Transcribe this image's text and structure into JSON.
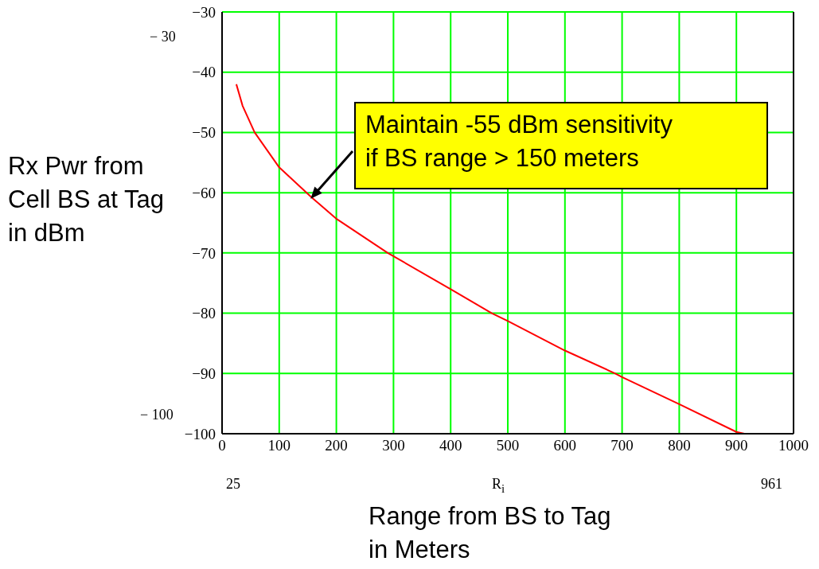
{
  "chart_data": {
    "type": "line",
    "xlabel": "Range from BS to Tag in Meters",
    "ylabel": "Rx Pwr from Cell BS at Tag in dBm",
    "x": [
      25,
      36,
      57,
      100,
      157,
      201,
      290,
      400,
      472,
      500,
      600,
      688,
      700,
      800,
      900,
      914
    ],
    "series": [
      {
        "color": "#ff0000",
        "values": [
          -42,
          -45.6,
          -50,
          -55.8,
          -60.8,
          -64.4,
          -70,
          -76,
          -80,
          -81.3,
          -86.2,
          -90,
          -90.6,
          -95.1,
          -99.7,
          -100
        ]
      }
    ],
    "xlim": [
      0,
      1000
    ],
    "ylim": [
      -100,
      -30
    ],
    "xticks": [
      0,
      100,
      200,
      300,
      400,
      500,
      600,
      700,
      800,
      900,
      1000
    ],
    "yticks": [
      {
        "value": -100,
        "label": "−100"
      },
      {
        "value": -90,
        "label": "−90"
      },
      {
        "value": -80,
        "label": "−80"
      },
      {
        "value": -70,
        "label": "−70"
      },
      {
        "value": -60,
        "label": "−60"
      },
      {
        "value": -50,
        "label": "−50"
      },
      {
        "value": -40,
        "label": "−40"
      },
      {
        "value": -30,
        "label": "−30"
      }
    ],
    "grid": true,
    "line_style": "solid",
    "annotations": [
      "− 30",
      "− 100",
      "25",
      "R$_{i}$",
      "961",
      {
        "text": "Maintain -55 dBm sensitivity\nif BS range > 150 meters",
        "x": 155,
        "y": -61
      }
    ]
  }
}
